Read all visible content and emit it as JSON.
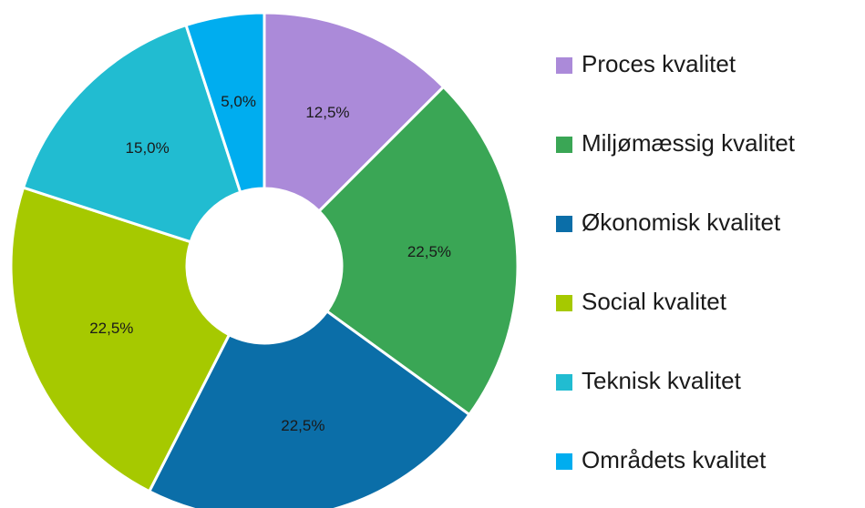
{
  "chart_data": {
    "type": "donut",
    "categories": [
      "Proces kvalitet",
      "Miljømæssig kvalitet",
      "Økonomisk kvalitet",
      "Social kvalitet",
      "Teknisk kvalitet",
      "Områdets kvalitet"
    ],
    "values": [
      12.5,
      22.5,
      22.5,
      22.5,
      15,
      5
    ],
    "value_labels": [
      "12,5%",
      "22,5%",
      "22,5%",
      "22,5%",
      "15,0%",
      "5,0%"
    ],
    "colors": [
      "#ab8ad9",
      "#3aa655",
      "#0b6ea8",
      "#a6c900",
      "#21bcd1",
      "#00adef"
    ],
    "legend": "right"
  }
}
